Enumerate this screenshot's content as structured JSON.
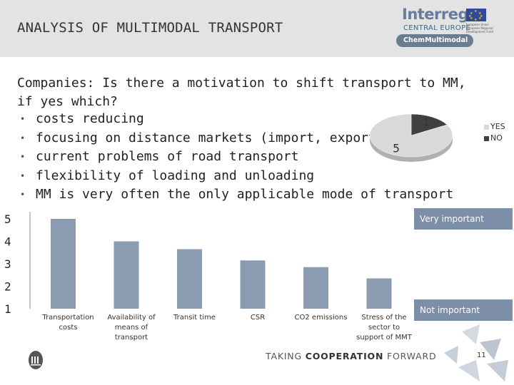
{
  "slide": {
    "title": "ANALYSIS OF MULTIMODAL TRANSPORT",
    "question": "Companies: Is there a motivation to shift transport to MM, if yes which?",
    "bullets": [
      "costs reducing",
      "focusing on distance markets (import, export)",
      "current problems of road transport",
      "flexibility of loading and unloading",
      "MM is very often the only applicable mode of transport"
    ],
    "footer_text_plain": "TAKING ",
    "footer_text_bold": "COOPERATION",
    "footer_text_end": " FORWARD",
    "page_number": "11"
  },
  "logo": {
    "name": "Interreg",
    "region": "CENTRAL EUROPE",
    "project": "ChemMultimodal",
    "eu_text": "European Union European Regional Development Fund"
  },
  "labels": {
    "very_important": "Very important",
    "not_important": "Not important"
  },
  "colors": {
    "bar": "#8a9bb2",
    "pie_yes": "#d9d9d9",
    "pie_no": "#404040",
    "tag": "#7c8ea8"
  },
  "chart_data": [
    {
      "type": "pie",
      "categories": [
        "YES",
        "NO"
      ],
      "values": [
        5,
        1
      ],
      "legend": "right"
    },
    {
      "type": "bar",
      "categories": [
        "Transportation costs",
        "Availability of means of transport",
        "Transit time",
        "CSR",
        "CO2 emissions",
        "Stress of the sector to support of MMT"
      ],
      "category_lines": [
        [
          "Transportation",
          "costs"
        ],
        [
          "Availability of",
          "means of",
          "transport"
        ],
        [
          "Transit time"
        ],
        [
          "CSR"
        ],
        [
          "CO2 emissions"
        ],
        [
          "Stress of the",
          "sector to",
          "support of MMT"
        ]
      ],
      "values": [
        5.0,
        4.0,
        3.65,
        3.15,
        2.85,
        2.35
      ],
      "ylim": [
        1,
        5
      ],
      "yticks": [
        "1",
        "2",
        "3",
        "4",
        "5"
      ],
      "grid": false
    }
  ]
}
